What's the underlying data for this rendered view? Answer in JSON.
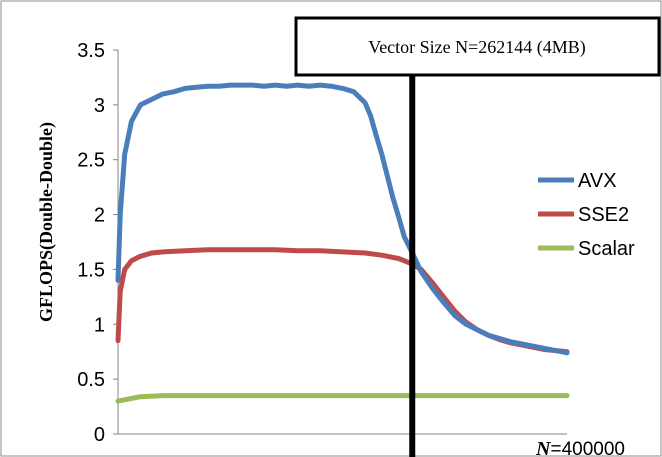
{
  "chart_data": {
    "type": "line",
    "title": "",
    "xlabel": "",
    "ylabel": "GFLOPS(Double-Double)",
    "ylim": [
      0,
      3.5
    ],
    "yticks": [
      0,
      0.5,
      1,
      1.5,
      2,
      2.5,
      3,
      3.5
    ],
    "ytick_labels": [
      "0",
      "0.5",
      "1",
      "1.5",
      "2",
      "2.5",
      "3",
      "3.5"
    ],
    "xlim": [
      0,
      400000
    ],
    "x_end_label": {
      "variable": "N",
      "value": "=400000"
    },
    "grid": false,
    "legend_position": "right",
    "series": [
      {
        "name": "AVX",
        "color": "#4A7EBB",
        "x": [
          0,
          2000,
          6000,
          12000,
          20000,
          30000,
          40000,
          50000,
          60000,
          70000,
          80000,
          90000,
          100000,
          110000,
          120000,
          130000,
          140000,
          150000,
          160000,
          170000,
          180000,
          190000,
          200000,
          210000,
          220000,
          225000,
          230000,
          235000,
          240000,
          245000,
          250000,
          255000,
          262144,
          270000,
          280000,
          290000,
          300000,
          310000,
          320000,
          330000,
          340000,
          350000,
          360000,
          370000,
          380000,
          390000,
          400000
        ],
        "values": [
          1.4,
          2.0,
          2.55,
          2.85,
          3.0,
          3.05,
          3.1,
          3.12,
          3.15,
          3.16,
          3.17,
          3.17,
          3.18,
          3.18,
          3.18,
          3.17,
          3.18,
          3.17,
          3.18,
          3.17,
          3.18,
          3.17,
          3.15,
          3.12,
          3.02,
          2.9,
          2.72,
          2.55,
          2.35,
          2.15,
          1.98,
          1.8,
          1.65,
          1.48,
          1.33,
          1.2,
          1.08,
          1.0,
          0.95,
          0.9,
          0.87,
          0.84,
          0.82,
          0.8,
          0.78,
          0.76,
          0.74
        ]
      },
      {
        "name": "SSE2",
        "color": "#BE4B48",
        "x": [
          0,
          2000,
          6000,
          12000,
          20000,
          30000,
          40000,
          60000,
          80000,
          100000,
          120000,
          140000,
          160000,
          180000,
          200000,
          220000,
          235000,
          250000,
          262144,
          270000,
          280000,
          290000,
          300000,
          310000,
          320000,
          330000,
          340000,
          350000,
          360000,
          370000,
          380000,
          390000,
          400000
        ],
        "values": [
          0.85,
          1.3,
          1.5,
          1.58,
          1.62,
          1.65,
          1.66,
          1.67,
          1.68,
          1.68,
          1.68,
          1.68,
          1.67,
          1.67,
          1.66,
          1.65,
          1.63,
          1.6,
          1.55,
          1.5,
          1.38,
          1.25,
          1.12,
          1.02,
          0.95,
          0.9,
          0.86,
          0.83,
          0.81,
          0.79,
          0.77,
          0.76,
          0.75
        ]
      },
      {
        "name": "Scalar",
        "color": "#9BBB59",
        "x": [
          0,
          20000,
          40000,
          60000,
          80000,
          100000,
          120000,
          140000,
          160000,
          180000,
          200000,
          220000,
          240000,
          262144,
          280000,
          300000,
          320000,
          340000,
          360000,
          380000,
          400000
        ],
        "values": [
          0.3,
          0.34,
          0.35,
          0.35,
          0.35,
          0.35,
          0.35,
          0.35,
          0.35,
          0.35,
          0.35,
          0.35,
          0.35,
          0.35,
          0.35,
          0.35,
          0.35,
          0.35,
          0.35,
          0.35,
          0.35
        ]
      }
    ],
    "annotations": [
      {
        "text": "Vector Size N=262144 (4MB)",
        "x": 262144
      }
    ]
  }
}
